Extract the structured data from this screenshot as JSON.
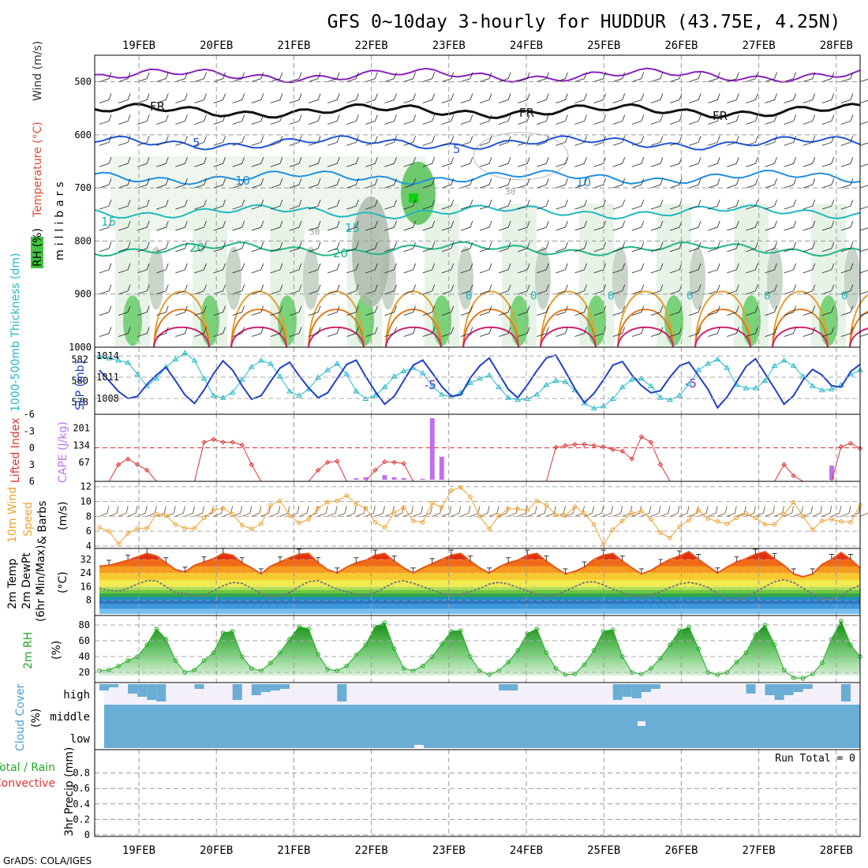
{
  "title": "GFS 0~10day 3-hourly for HUDDUR (43.75E, 4.25N)",
  "credit": "GrADS: COLA/IGES",
  "dates": [
    "19FEB",
    "20FEB",
    "21FEB",
    "22FEB",
    "23FEB",
    "24FEB",
    "25FEB",
    "26FEB",
    "27FEB",
    "28FEB"
  ],
  "chart_data": [
    {
      "type": "heatmap",
      "panel": "upper-air",
      "ylabel": "millibars",
      "yticks": [
        500,
        600,
        700,
        800,
        900,
        1000
      ],
      "ylim": [
        1000,
        450
      ],
      "legend_labels": [
        "RH (%)",
        "Temperature (°C)",
        "Wind (m/s)"
      ],
      "colors": {
        "rh": "#3ec43e",
        "temperature": "#e34a33",
        "wind": "#333333"
      },
      "contour_labels": [
        "5",
        "-5",
        "FR",
        "10",
        "15",
        "20",
        "30",
        "0"
      ],
      "isotherms": [
        {
          "label": "-5",
          "color": "#8a1fc0",
          "level_mb": 488
        },
        {
          "label": "FR",
          "color": "#111111",
          "level_mb": 555
        },
        {
          "label": "5",
          "color": "#1f55d8",
          "level_mb": 615
        },
        {
          "label": "10",
          "color": "#2090e0",
          "level_mb": 680
        },
        {
          "label": "15",
          "color": "#20b8c0",
          "level_mb": 745
        },
        {
          "label": "20",
          "color": "#22b58a",
          "level_mb": 815
        }
      ]
    },
    {
      "type": "line",
      "panel": "thickness-slp",
      "series": [
        {
          "name": "1000-500mb Thickness (dm)",
          "color": "#22b8c8",
          "ylim": [
            577,
            583
          ],
          "yticks": [
            578,
            580,
            582
          ],
          "values": [
            582.3,
            582.1,
            581.9,
            581.7,
            580.6,
            579.5,
            580.2,
            581.3,
            582.0,
            582.6,
            581.9,
            580.2,
            578.6,
            578.4,
            578.9,
            580.1,
            581.3,
            581.9,
            581.6,
            580.4,
            579.0,
            578.6,
            579.2,
            580.3,
            581.0,
            581.6,
            580.6,
            579.0,
            578.3,
            578.6,
            579.4,
            580.4,
            580.9,
            581.2,
            580.7,
            579.5,
            578.7,
            578.5,
            578.9,
            579.8,
            580.2,
            580.5,
            579.4,
            578.4,
            578.2,
            578.3,
            578.7,
            579.6,
            580.0,
            579.9,
            579.1,
            577.9,
            577.4,
            577.6,
            578.3,
            579.4,
            580.1,
            580.2,
            579.5,
            578.4,
            578.2,
            578.6,
            579.7,
            581.0,
            581.6,
            582.0,
            581.2,
            579.6,
            579.3,
            579.3,
            580.0,
            581.4,
            581.9,
            581.4,
            580.4,
            579.5,
            579.1,
            579.2,
            579.6,
            580.6,
            581.0
          ]
        },
        {
          "name": "SLP (mb)",
          "color": "#1f3fc8",
          "ylim": [
            1006,
            1015
          ],
          "yticks": [
            1008,
            1011,
            1014
          ],
          "values": [
            1012,
            1010.5,
            1009,
            1008,
            1008.3,
            1010,
            1011.3,
            1012.4,
            1010.5,
            1008.5,
            1007.3,
            1009.2,
            1011.5,
            1013.3,
            1012,
            1009.8,
            1007.9,
            1008.4,
            1010.4,
            1012.3,
            1013.1,
            1011.2,
            1009.5,
            1008.1,
            1008.8,
            1010.8,
            1012.8,
            1013.4,
            1011.1,
            1009,
            1007.2,
            1008.3,
            1010.5,
            1012.7,
            1013.4,
            1011.6,
            1009.7,
            1008.3,
            1008.5,
            1010.9,
            1012.6,
            1013.7,
            1011.5,
            1009.3,
            1008.1,
            1009.9,
            1011.9,
            1013.7,
            1014.1,
            1011.8,
            1009.4,
            1007.4,
            1008.7,
            1010.6,
            1012.7,
            1013.2,
            1011.3,
            1009.8,
            1008.8,
            1009.1,
            1011,
            1012.6,
            1013.1,
            1011.2,
            1009.3,
            1006.7,
            1008.2,
            1010.3,
            1012.5,
            1013.6,
            1011.5,
            1009.4,
            1007.2,
            1008.4,
            1010.6,
            1012.1,
            1011.3,
            1009.8,
            1009.6,
            1011.8,
            1012.8
          ]
        }
      ]
    },
    {
      "type": "bar",
      "panel": "instability",
      "series": [
        {
          "name": "Lifted Index",
          "color": "#dd3333",
          "axis": "left",
          "yticks": [
            -6,
            -3,
            0,
            3,
            6
          ],
          "ylim": [
            6,
            -6
          ],
          "values": [
            6,
            6,
            3,
            2,
            3,
            4,
            6,
            6,
            6,
            6,
            6,
            -1,
            -1.5,
            -1,
            -1,
            -0.5,
            3,
            6,
            6,
            6,
            6,
            6,
            6,
            4,
            2.6,
            2.4,
            6,
            6,
            6,
            4,
            2.5,
            2.6,
            2.8,
            6,
            6,
            6,
            6,
            6,
            6,
            6,
            6,
            6,
            6,
            6,
            6,
            6,
            6,
            6,
            -0.1,
            -0.4,
            -0.6,
            -0.6,
            -0.4,
            -0.2,
            0.3,
            0.6,
            2,
            -2,
            -1,
            3,
            6,
            6,
            6,
            6,
            6,
            6,
            6,
            6,
            6,
            6,
            6,
            6,
            3,
            5,
            6,
            6,
            6,
            6,
            -0.2,
            -0.8,
            0.1
          ]
        },
        {
          "name": "CAPE (J/kg)",
          "color": "#c070f0",
          "axis": "right",
          "yticks": [
            67,
            134,
            201
          ],
          "ylim": [
            0,
            240
          ],
          "bars": [
            {
              "t": 27,
              "v": 6
            },
            {
              "t": 28,
              "v": 10
            },
            {
              "t": 30,
              "v": 18
            },
            {
              "t": 31,
              "v": 10
            },
            {
              "t": 32,
              "v": 7
            },
            {
              "t": 34,
              "v": 4
            },
            {
              "t": 35,
              "v": 240
            },
            {
              "t": 36,
              "v": 90
            },
            {
              "t": 77,
              "v": 55
            }
          ]
        }
      ]
    },
    {
      "type": "line",
      "panel": "wind",
      "ylabel": "10m Wind Speed & Barbs (m/s)",
      "yticks": [
        4,
        6,
        8,
        10,
        12
      ],
      "ylim": [
        4,
        12.5
      ],
      "series": [
        {
          "name": "10m Wind Speed",
          "color": "#f0a030",
          "values": [
            6.5,
            6,
            4.3,
            5.7,
            6.4,
            6.4,
            8.3,
            8.1,
            6.9,
            6.4,
            6.4,
            7.8,
            8.8,
            9.1,
            8.3,
            6.8,
            6.3,
            7,
            9.5,
            10.1,
            8.1,
            7.1,
            7.6,
            9.1,
            9.9,
            10.1,
            10.8,
            9.7,
            9.1,
            7.2,
            6.5,
            8.5,
            9.2,
            7.4,
            7.2,
            9.8,
            9.2,
            11.5,
            11.9,
            10.6,
            8,
            6.3,
            8.1,
            9,
            9,
            8.8,
            10.1,
            9.5,
            8.2,
            8.1,
            9.3,
            8.4,
            6.9,
            4.2,
            6.2,
            7.4,
            8.4,
            8.7,
            7.6,
            5.8,
            5.1,
            6.6,
            7.5,
            8.8,
            7.7,
            7.3,
            7,
            7.8,
            8.4,
            7.8,
            6.9,
            6.9,
            8.3,
            9.9,
            8,
            6.2,
            7.4,
            7.6,
            7.3,
            7.2,
            9.5
          ]
        }
      ]
    },
    {
      "type": "area",
      "panel": "temperature",
      "ylabel": "2m Temp 2m DewPt (6hr Min/Max) (°C)",
      "yticks": [
        8,
        16,
        24,
        32
      ],
      "ylim": [
        0,
        38
      ],
      "series": [
        {
          "name": "2m Temp",
          "color": "#e8551a",
          "values": [
            28,
            28.5,
            30,
            31.5,
            33.5,
            35.5,
            34,
            30,
            26,
            24.5,
            28.5,
            30.5,
            32.5,
            35.5,
            34.5,
            30,
            27,
            23.5,
            28,
            30.5,
            33,
            35,
            35.5,
            30,
            26,
            24,
            27.5,
            30,
            31.5,
            34.5,
            35.5,
            31,
            27,
            24,
            27,
            29.5,
            32,
            34.5,
            35.5,
            31,
            27,
            24,
            27.5,
            30,
            31.5,
            34.5,
            35.5,
            31,
            27,
            23.5,
            25,
            27.5,
            32,
            34.5,
            35.5,
            31,
            27,
            23.5,
            25.5,
            29,
            32,
            34,
            36.5,
            32,
            28,
            24,
            27.5,
            30.5,
            32.5,
            35,
            36.5,
            32.5,
            28.5,
            23.5,
            21.8,
            23.5,
            29,
            32,
            36,
            32,
            27
          ]
        },
        {
          "name": "2m DewPt",
          "color": "#888888",
          "values": [
            15,
            14,
            13.5,
            15,
            17.5,
            19.5,
            19.5,
            16,
            12.5,
            12,
            10.5,
            11,
            13.5,
            16.5,
            18.5,
            18,
            15,
            12,
            10,
            10.5,
            12.5,
            16,
            19,
            19.5,
            17,
            14.5,
            13,
            11.5,
            11,
            12.5,
            15.5,
            18.5,
            19.5,
            18,
            16,
            14,
            12,
            11,
            11.5,
            13,
            15,
            17.5,
            18.5,
            17.5,
            15.5,
            13.5,
            11.5,
            10.5,
            11,
            13.5,
            16,
            18.5,
            19,
            17,
            14.5,
            12.5,
            10.5,
            10,
            11,
            13,
            15.5,
            17.5,
            18.5,
            17.5,
            15.5,
            12,
            9,
            8.5,
            10,
            13,
            16,
            19,
            20,
            18.5,
            15,
            11.5,
            9,
            8.5,
            10.5,
            14.5,
            17
          ]
        }
      ]
    },
    {
      "type": "area",
      "panel": "relative-humidity",
      "ylabel": "2m RH (%)",
      "yticks": [
        20,
        40,
        60,
        80
      ],
      "ylim": [
        10,
        90
      ],
      "series": [
        {
          "name": "2m RH",
          "color": "#22aa22",
          "values": [
            22,
            23,
            28,
            35,
            40,
            55,
            75,
            62,
            35,
            20,
            23,
            35,
            45,
            70,
            72,
            40,
            25,
            22,
            32,
            45,
            62,
            78,
            75,
            43,
            24,
            22,
            28,
            42,
            55,
            78,
            83,
            50,
            25,
            22,
            28,
            40,
            56,
            72,
            73,
            40,
            22,
            17,
            22,
            33,
            48,
            69,
            75,
            45,
            25,
            17,
            18,
            30,
            48,
            72,
            74,
            40,
            20,
            18,
            25,
            38,
            55,
            73,
            77,
            50,
            20,
            17,
            20,
            33,
            45,
            68,
            80,
            55,
            23,
            13,
            12,
            18,
            32,
            62,
            85,
            55,
            40
          ]
        }
      ]
    },
    {
      "type": "heatmap",
      "panel": "cloud-cover",
      "ylabel": "Cloud Cover (%)",
      "layers": [
        "high",
        "middle",
        "low"
      ],
      "color": "#6aaed6"
    },
    {
      "type": "bar",
      "panel": "precipitation",
      "ylabel": "3hr Precip (mm)",
      "legend_labels": [
        "Total / Rain",
        "Convective"
      ],
      "annotation": "Run Total = 0",
      "yticks": [
        0,
        0.2,
        0.4,
        0.6,
        0.8
      ],
      "ylim": [
        0,
        1
      ],
      "values": [
        0,
        0,
        0,
        0,
        0,
        0,
        0,
        0,
        0,
        0,
        0,
        0,
        0,
        0,
        0,
        0,
        0,
        0,
        0,
        0,
        0,
        0,
        0,
        0,
        0,
        0,
        0,
        0,
        0,
        0,
        0,
        0,
        0,
        0,
        0,
        0,
        0,
        0,
        0,
        0,
        0,
        0,
        0,
        0,
        0,
        0,
        0,
        0,
        0,
        0,
        0,
        0,
        0,
        0,
        0,
        0,
        0,
        0,
        0,
        0,
        0,
        0,
        0,
        0,
        0,
        0,
        0,
        0,
        0,
        0,
        0,
        0,
        0,
        0,
        0,
        0,
        0,
        0,
        0,
        0,
        0
      ]
    }
  ]
}
